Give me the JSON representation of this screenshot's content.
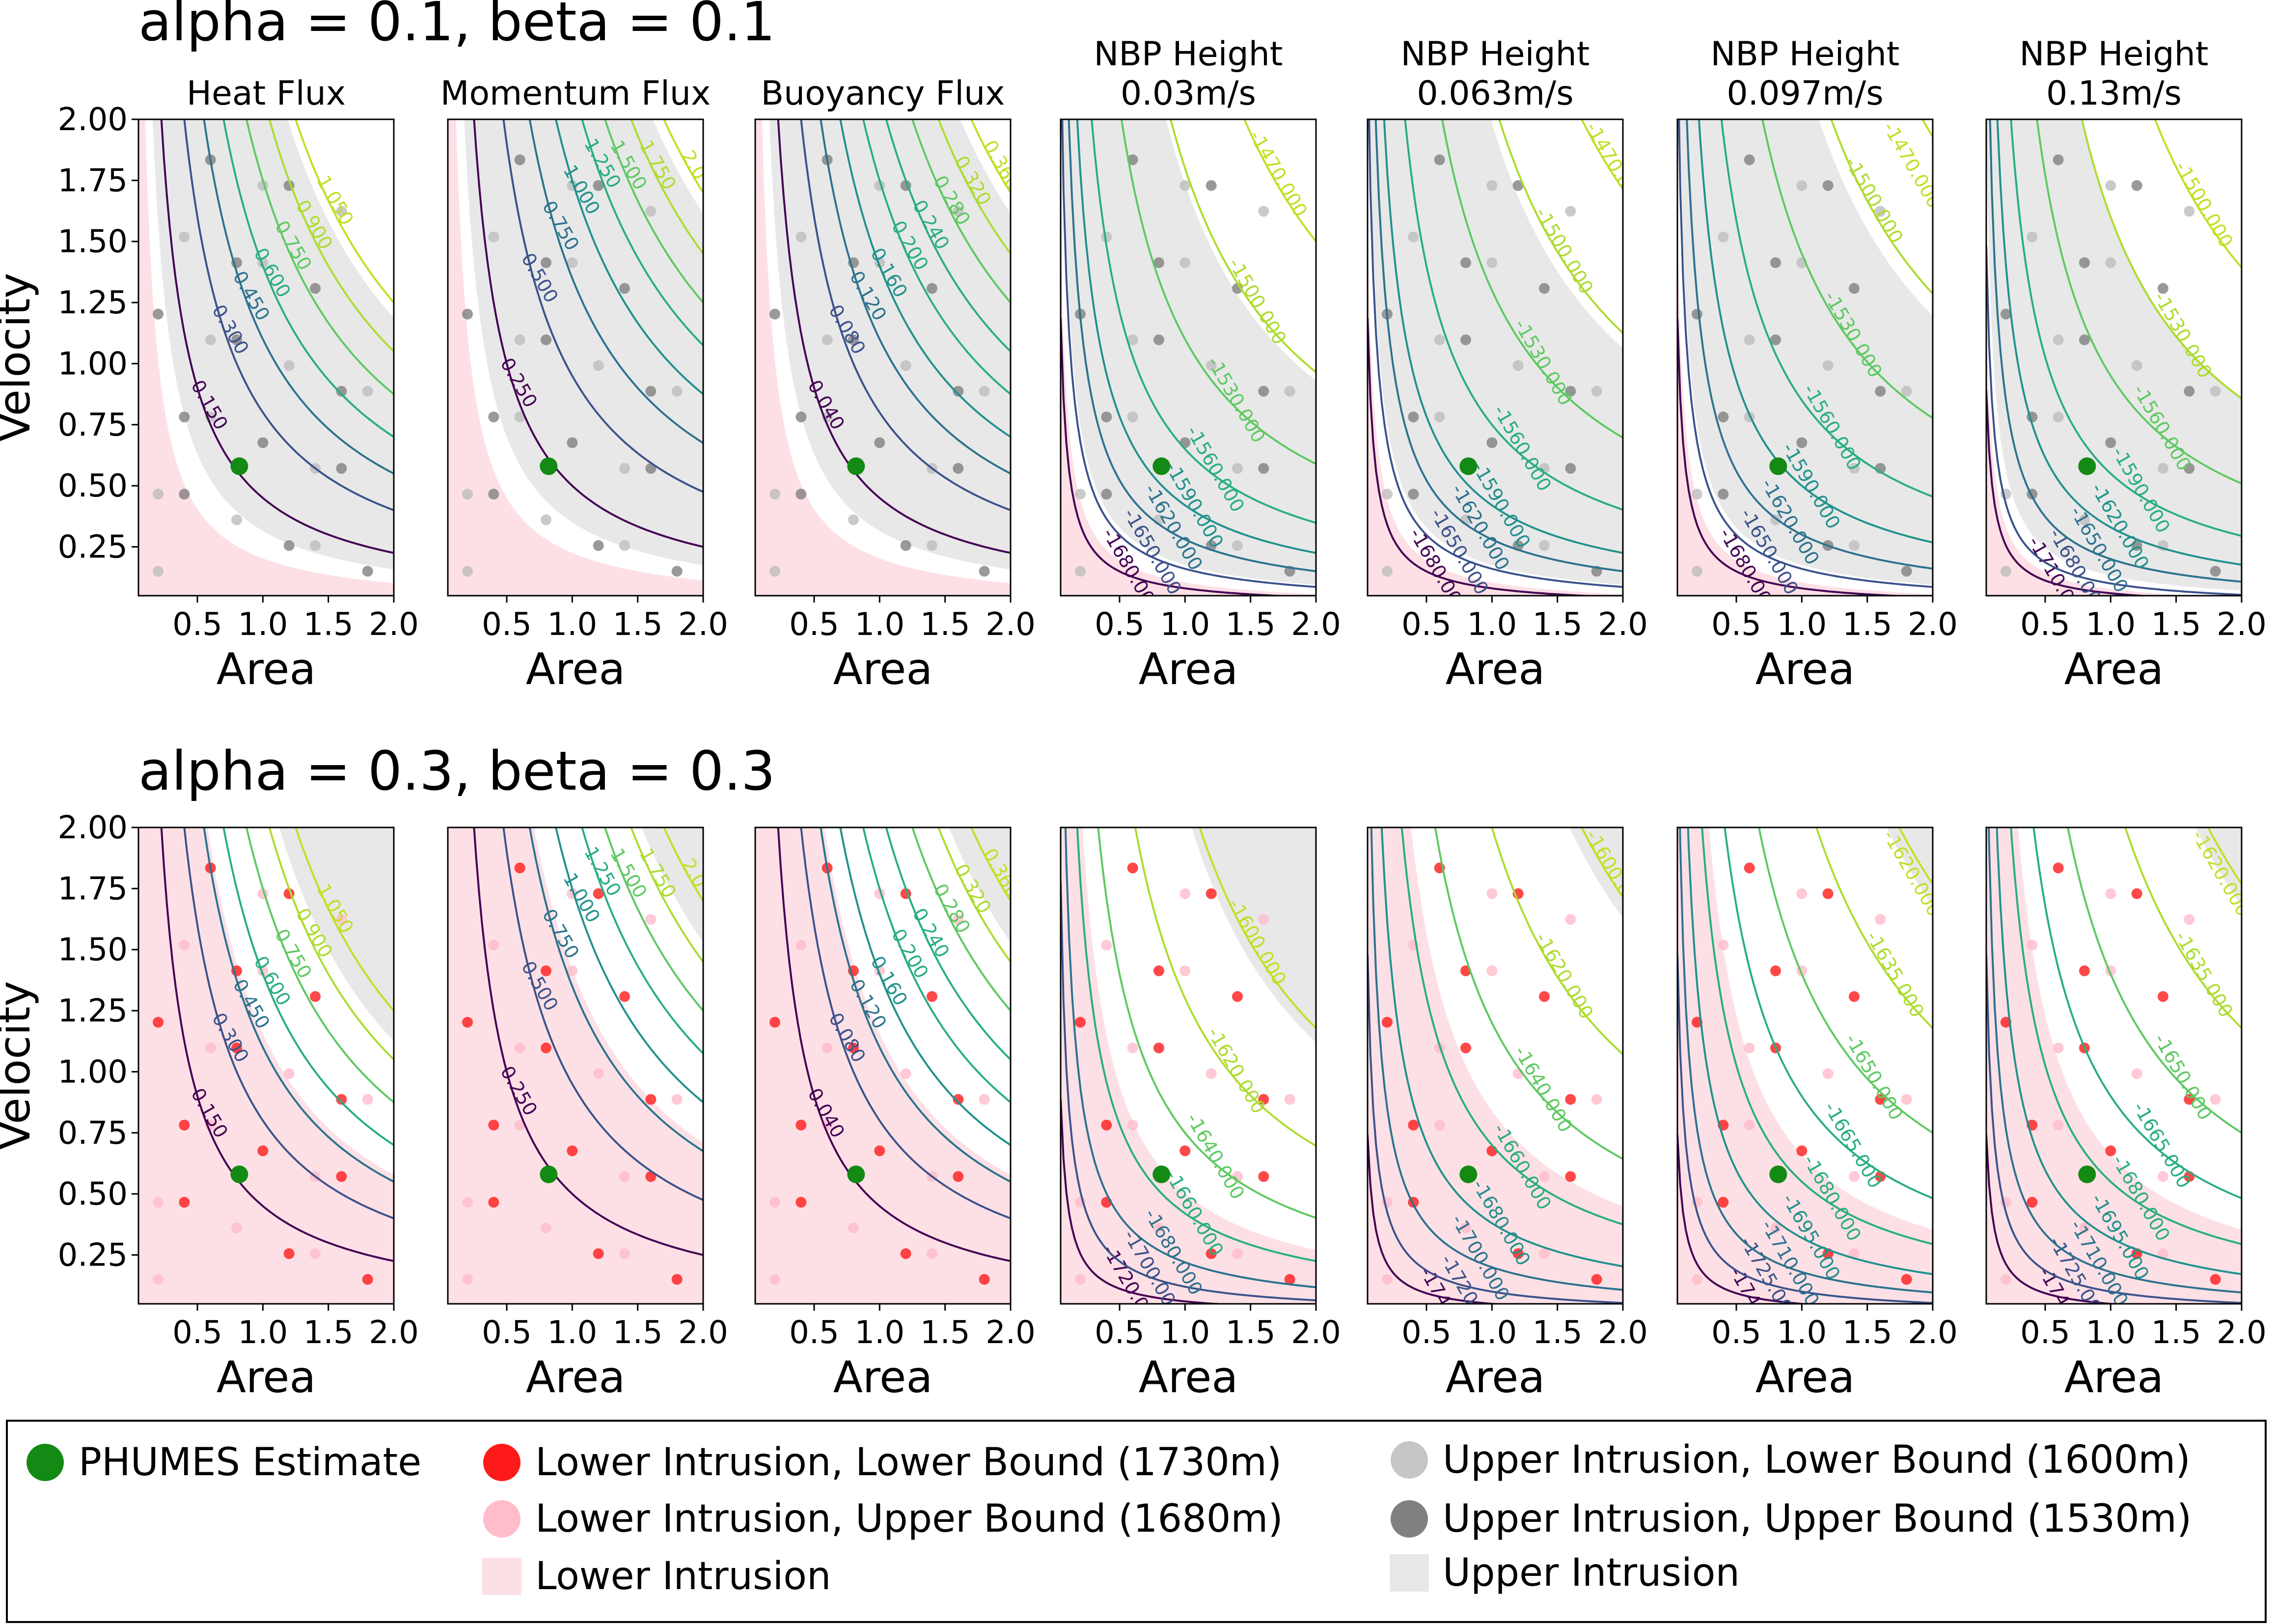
{
  "figure": {
    "row_titles": [
      "alpha = 0.1, beta = 0.1",
      "alpha = 0.3, beta = 0.3"
    ]
  },
  "chart_data": [
    {
      "type": "contour",
      "panel": "row1-col1",
      "title": "Heat Flux",
      "xlabel": "Area",
      "ylabel": "Velocity",
      "xlim": [
        0.05,
        2.0
      ],
      "ylim": [
        0.05,
        2.0
      ],
      "xticks": [
        "0.5",
        "1.0",
        "1.5",
        "2.0"
      ],
      "yticks": [
        "0.25",
        "0.50",
        "0.75",
        "1.00",
        "1.25",
        "1.50",
        "1.75",
        "2.00"
      ],
      "family": "flux",
      "levels": [
        {
          "label": "0.150",
          "k": 0.45
        },
        {
          "label": "0.300",
          "k": 0.8
        },
        {
          "label": "0.450",
          "k": 1.1
        },
        {
          "label": "0.600",
          "k": 1.4
        },
        {
          "label": "0.750",
          "k": 1.75
        },
        {
          "label": "0.900",
          "k": 2.1
        },
        {
          "label": "1.050",
          "k": 2.5
        }
      ],
      "shading": "upper",
      "estimate": {
        "area": 0.82,
        "velocity": 0.58
      }
    },
    {
      "type": "contour",
      "panel": "row1-col2",
      "title": "Momentum Flux",
      "xlabel": "Area",
      "ylabel": "",
      "xlim": [
        0.05,
        2.0
      ],
      "ylim": [
        0.05,
        2.0
      ],
      "xticks": [
        "0.5",
        "1.0",
        "1.5",
        "2.0"
      ],
      "family": "flux",
      "levels": [
        {
          "label": "0.250",
          "k": 0.5
        },
        {
          "label": "0.500",
          "k": 0.95
        },
        {
          "label": "0.750",
          "k": 1.35
        },
        {
          "label": "1.000",
          "k": 1.75
        },
        {
          "label": "1.250",
          "k": 2.15
        },
        {
          "label": "1.500",
          "k": 2.5
        },
        {
          "label": "1.750",
          "k": 2.9
        },
        {
          "label": "2.0",
          "k": 3.4
        }
      ],
      "shading": "upper",
      "estimate": {
        "area": 0.82,
        "velocity": 0.58
      }
    },
    {
      "type": "contour",
      "panel": "row1-col3",
      "title": "Buoyancy Flux",
      "xlabel": "Area",
      "ylabel": "",
      "xlim": [
        0.05,
        2.0
      ],
      "ylim": [
        0.05,
        2.0
      ],
      "xticks": [
        "0.5",
        "1.0",
        "1.5",
        "2.0"
      ],
      "family": "flux",
      "levels": [
        {
          "label": "0.040",
          "k": 0.45
        },
        {
          "label": "0.080",
          "k": 0.8
        },
        {
          "label": "0.120",
          "k": 1.1
        },
        {
          "label": "0.160",
          "k": 1.4
        },
        {
          "label": "0.200",
          "k": 1.75
        },
        {
          "label": "0.240",
          "k": 2.1
        },
        {
          "label": "0.280",
          "k": 2.5
        },
        {
          "label": "0.320",
          "k": 2.9
        },
        {
          "label": "0.360",
          "k": 3.4
        }
      ],
      "shading": "upper",
      "estimate": {
        "area": 0.82,
        "velocity": 0.58
      }
    },
    {
      "type": "contour",
      "panel": "row1-col4",
      "title": "NBP Height\n0.03m/s",
      "xlabel": "Area",
      "ylabel": "",
      "xlim": [
        0.05,
        2.0
      ],
      "ylim": [
        0.05,
        2.0
      ],
      "xticks": [
        "0.5",
        "1.0",
        "1.5",
        "2.0"
      ],
      "family": "nbp",
      "levels": [
        {
          "label": "-1680.000",
          "k": 0.08
        },
        {
          "label": "-1650.000",
          "k": 0.16
        },
        {
          "label": "-1620.000",
          "k": 0.28
        },
        {
          "label": "-1590.000",
          "k": 0.42
        },
        {
          "label": "-1560.000",
          "k": 0.65
        },
        {
          "label": "-1530.000",
          "k": 1.1
        },
        {
          "label": "-1500.000",
          "k": 1.8
        },
        {
          "label": "-1470.000",
          "k": 2.8
        }
      ],
      "shading": "upper",
      "estimate": {
        "area": 0.82,
        "velocity": 0.58
      }
    },
    {
      "type": "contour",
      "panel": "row1-col5",
      "title": "NBP Height\n0.063m/s",
      "xlabel": "Area",
      "ylabel": "",
      "xlim": [
        0.05,
        2.0
      ],
      "ylim": [
        0.05,
        2.0
      ],
      "xticks": [
        "0.5",
        "1.0",
        "1.5",
        "2.0"
      ],
      "family": "nbp",
      "levels": [
        {
          "label": "-1680.000",
          "k": 0.08
        },
        {
          "label": "-1650.000",
          "k": 0.16
        },
        {
          "label": "-1620.000",
          "k": 0.28
        },
        {
          "label": "-1590.000",
          "k": 0.42
        },
        {
          "label": "-1560.000",
          "k": 0.75
        },
        {
          "label": "-1530.000",
          "k": 1.3
        },
        {
          "label": "-1500.000",
          "k": 2.1
        },
        {
          "label": "-1470.000",
          "k": 3.2
        }
      ],
      "shading": "upper",
      "estimate": {
        "area": 0.82,
        "velocity": 0.58
      }
    },
    {
      "type": "contour",
      "panel": "row1-col6",
      "title": "NBP Height\n0.097m/s",
      "xlabel": "Area",
      "ylabel": "",
      "xlim": [
        0.05,
        2.0
      ],
      "ylim": [
        0.05,
        2.0
      ],
      "xticks": [
        "0.5",
        "1.0",
        "1.5",
        "2.0"
      ],
      "family": "nbp",
      "levels": [
        {
          "label": "-1680.000",
          "k": 0.08
        },
        {
          "label": "-1650.000",
          "k": 0.16
        },
        {
          "label": "-1620.000",
          "k": 0.3
        },
        {
          "label": "-1590.000",
          "k": 0.5
        },
        {
          "label": "-1560.000",
          "k": 0.85
        },
        {
          "label": "-1530.000",
          "k": 1.45
        },
        {
          "label": "-1500.000",
          "k": 2.4
        },
        {
          "label": "-1470.000",
          "k": 3.6
        }
      ],
      "shading": "upper",
      "estimate": {
        "area": 0.82,
        "velocity": 0.58
      }
    },
    {
      "type": "contour",
      "panel": "row1-col7",
      "title": "NBP Height\n0.13m/s",
      "xlabel": "Area",
      "ylabel": "",
      "xlim": [
        0.05,
        2.0
      ],
      "ylim": [
        0.05,
        2.0
      ],
      "xticks": [
        "0.5",
        "1.0",
        "1.5",
        "2.0"
      ],
      "family": "nbp",
      "levels": [
        {
          "label": "-1710.000",
          "k": 0.06
        },
        {
          "label": "-1680.000",
          "k": 0.1
        },
        {
          "label": "-1650.000",
          "k": 0.2
        },
        {
          "label": "-1620.000",
          "k": 0.33
        },
        {
          "label": "-1590.000",
          "k": 0.55
        },
        {
          "label": "-1560.000",
          "k": 0.95
        },
        {
          "label": "-1530.000",
          "k": 1.6
        },
        {
          "label": "-1500.000",
          "k": 2.6
        }
      ],
      "shading": "upper",
      "estimate": {
        "area": 0.82,
        "velocity": 0.58
      }
    },
    {
      "type": "contour",
      "panel": "row2-col1",
      "title": "",
      "xlabel": "Area",
      "ylabel": "Velocity",
      "xlim": [
        0.05,
        2.0
      ],
      "ylim": [
        0.05,
        2.0
      ],
      "xticks": [
        "0.5",
        "1.0",
        "1.5",
        "2.0"
      ],
      "yticks": [
        "0.25",
        "0.50",
        "0.75",
        "1.00",
        "1.25",
        "1.50",
        "1.75",
        "2.00"
      ],
      "family": "flux",
      "levels": [
        {
          "label": "0.150",
          "k": 0.45
        },
        {
          "label": "0.300",
          "k": 0.8
        },
        {
          "label": "0.450",
          "k": 1.1
        },
        {
          "label": "0.600",
          "k": 1.4
        },
        {
          "label": "0.750",
          "k": 1.75
        },
        {
          "label": "0.900",
          "k": 2.1
        },
        {
          "label": "1.050",
          "k": 2.5
        }
      ],
      "shading": "lower",
      "estimate": {
        "area": 0.82,
        "velocity": 0.58
      }
    },
    {
      "type": "contour",
      "panel": "row2-col2",
      "title": "",
      "xlabel": "Area",
      "ylabel": "",
      "xlim": [
        0.05,
        2.0
      ],
      "ylim": [
        0.05,
        2.0
      ],
      "xticks": [
        "0.5",
        "1.0",
        "1.5",
        "2.0"
      ],
      "family": "flux",
      "levels": [
        {
          "label": "0.250",
          "k": 0.5
        },
        {
          "label": "0.500",
          "k": 0.95
        },
        {
          "label": "0.750",
          "k": 1.35
        },
        {
          "label": "1.000",
          "k": 1.75
        },
        {
          "label": "1.250",
          "k": 2.15
        },
        {
          "label": "1.500",
          "k": 2.5
        },
        {
          "label": "1.750",
          "k": 2.9
        },
        {
          "label": "2.0",
          "k": 3.4
        }
      ],
      "shading": "lower",
      "estimate": {
        "area": 0.82,
        "velocity": 0.58
      }
    },
    {
      "type": "contour",
      "panel": "row2-col3",
      "title": "",
      "xlabel": "Area",
      "ylabel": "",
      "xlim": [
        0.05,
        2.0
      ],
      "ylim": [
        0.05,
        2.0
      ],
      "xticks": [
        "0.5",
        "1.0",
        "1.5",
        "2.0"
      ],
      "family": "flux",
      "levels": [
        {
          "label": "0.040",
          "k": 0.45
        },
        {
          "label": "0.080",
          "k": 0.8
        },
        {
          "label": "0.120",
          "k": 1.1
        },
        {
          "label": "0.160",
          "k": 1.4
        },
        {
          "label": "0.200",
          "k": 1.75
        },
        {
          "label": "0.240",
          "k": 2.1
        },
        {
          "label": "0.280",
          "k": 2.5
        },
        {
          "label": "0.320",
          "k": 2.9
        },
        {
          "label": "0.360",
          "k": 3.4
        }
      ],
      "shading": "lower",
      "estimate": {
        "area": 0.82,
        "velocity": 0.58
      }
    },
    {
      "type": "contour",
      "panel": "row2-col4",
      "title": "",
      "xlabel": "Area",
      "ylabel": "",
      "xlim": [
        0.05,
        2.0
      ],
      "ylim": [
        0.05,
        2.0
      ],
      "xticks": [
        "0.5",
        "1.0",
        "1.5",
        "2.0"
      ],
      "family": "nbp",
      "levels": [
        {
          "label": "-1720.000",
          "k": 0.06
        },
        {
          "label": "-1700.000",
          "k": 0.12
        },
        {
          "label": "-1680.000",
          "k": 0.22
        },
        {
          "label": "-1660.000",
          "k": 0.42
        },
        {
          "label": "-1640.000",
          "k": 0.75
        },
        {
          "label": "-1620.000",
          "k": 1.3
        },
        {
          "label": "-1600.000",
          "k": 2.2
        }
      ],
      "shading": "lower",
      "estimate": {
        "area": 0.82,
        "velocity": 0.58
      }
    },
    {
      "type": "contour",
      "panel": "row2-col5",
      "title": "",
      "xlabel": "Area",
      "ylabel": "",
      "xlim": [
        0.05,
        2.0
      ],
      "ylim": [
        0.05,
        2.0
      ],
      "xticks": [
        "0.5",
        "1.0",
        "1.5",
        "2.0"
      ],
      "family": "nbp",
      "levels": [
        {
          "label": "-1740",
          "k": 0.05
        },
        {
          "label": "-1720",
          "k": 0.1
        },
        {
          "label": "-1700.000",
          "k": 0.2
        },
        {
          "label": "-1680.000",
          "k": 0.38
        },
        {
          "label": "-1660.000",
          "k": 0.7
        },
        {
          "label": "-1640.000",
          "k": 1.2
        },
        {
          "label": "-1620.000",
          "k": 2.0
        },
        {
          "label": "-1600.000",
          "k": 3.2
        }
      ],
      "shading": "lower",
      "estimate": {
        "area": 0.82,
        "velocity": 0.58
      }
    },
    {
      "type": "contour",
      "panel": "row2-col6",
      "title": "",
      "xlabel": "Area",
      "ylabel": "",
      "xlim": [
        0.05,
        2.0
      ],
      "ylim": [
        0.05,
        2.0
      ],
      "xticks": [
        "0.5",
        "1.0",
        "1.5",
        "2.0"
      ],
      "family": "nbp",
      "levels": [
        {
          "label": "-1740",
          "k": 0.05
        },
        {
          "label": "-1725.000",
          "k": 0.1
        },
        {
          "label": "-1710.000",
          "k": 0.18
        },
        {
          "label": "-1695.000",
          "k": 0.32
        },
        {
          "label": "-1680.000",
          "k": 0.55
        },
        {
          "label": "-1665.000",
          "k": 0.9
        },
        {
          "label": "-1650.000",
          "k": 1.4
        },
        {
          "label": "-1635.000",
          "k": 2.2
        },
        {
          "label": "-1620.000",
          "k": 3.3
        }
      ],
      "shading": "lower",
      "estimate": {
        "area": 0.82,
        "velocity": 0.58
      }
    },
    {
      "type": "contour",
      "panel": "row2-col7",
      "title": "",
      "xlabel": "Area",
      "ylabel": "",
      "xlim": [
        0.05,
        2.0
      ],
      "ylim": [
        0.05,
        2.0
      ],
      "xticks": [
        "0.5",
        "1.0",
        "1.5",
        "2.0"
      ],
      "family": "nbp",
      "levels": [
        {
          "label": "-1740",
          "k": 0.05
        },
        {
          "label": "-1725.000",
          "k": 0.1
        },
        {
          "label": "-1710.000",
          "k": 0.18
        },
        {
          "label": "-1695.000",
          "k": 0.32
        },
        {
          "label": "-1680.000",
          "k": 0.55
        },
        {
          "label": "-1665.000",
          "k": 0.9
        },
        {
          "label": "-1650.000",
          "k": 1.4
        },
        {
          "label": "-1635.000",
          "k": 2.2
        },
        {
          "label": "-1620.000",
          "k": 3.3
        }
      ],
      "shading": "lower",
      "estimate": {
        "area": 0.82,
        "velocity": 0.58
      }
    }
  ],
  "legend": {
    "items": [
      {
        "label": "PHUMES Estimate",
        "marker": "circle",
        "color": "#138a13"
      },
      {
        "label": "Lower Intrusion, Lower Bound (1730m)",
        "marker": "circle",
        "color": "#ff1a1a"
      },
      {
        "label": "Lower Intrusion, Upper Bound (1680m)",
        "marker": "circle",
        "color": "#ffbccb"
      },
      {
        "label": "Lower Intrusion",
        "marker": "square",
        "color": "#fde0e5"
      },
      {
        "label": "Upper Intrusion, Lower Bound (1600m)",
        "marker": "circle",
        "color": "#c6c6c6"
      },
      {
        "label": "Upper Intrusion, Upper Bound (1530m)",
        "marker": "circle",
        "color": "#808080"
      },
      {
        "label": "Upper Intrusion",
        "marker": "square",
        "color": "#e8e8e8"
      }
    ]
  },
  "colors": {
    "viridis": [
      "#440154",
      "#3b528b",
      "#2c728e",
      "#21918c",
      "#28ae80",
      "#5ec962",
      "#addc30",
      "#c2df23"
    ],
    "estimate": "#138a13",
    "lower_shade": "#fde0e5",
    "upper_shade": "#e8e8e8"
  }
}
